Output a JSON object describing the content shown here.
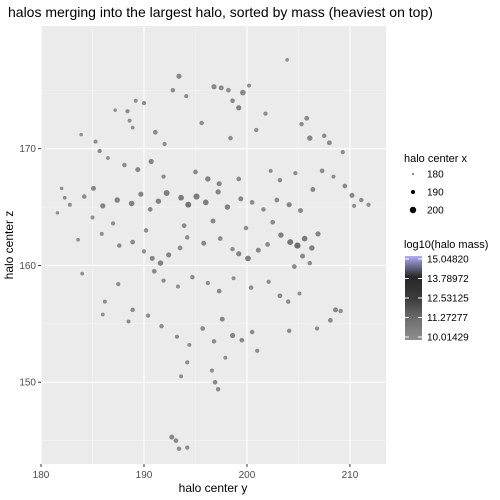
{
  "chart_data": {
    "type": "scatter",
    "title": "halos merging into the largest halo, sorted by mass (heaviest on top)",
    "xlabel": "halo center y",
    "ylabel": "halo center z",
    "xlim": [
      180,
      213.5
    ],
    "ylim": [
      143,
      180.5
    ],
    "xticks": [
      180,
      190,
      200,
      210
    ],
    "yticks": [
      150,
      160,
      170
    ],
    "grid": true,
    "size_legend": {
      "title": "halo center x",
      "labels": [
        "180",
        "190",
        "200"
      ],
      "values": [
        180,
        190,
        200
      ]
    },
    "color_legend": {
      "title": "log10(halo mass)",
      "labels": [
        "15.04820",
        "13.78972",
        "12.53125",
        "11.27277",
        "10.01429"
      ],
      "min": 10.01429,
      "max": 15.0482,
      "colors": [
        "#8f8f8f",
        "#6e6e6e",
        "#3b3b3b",
        "#262626",
        "#aeaef5"
      ]
    },
    "points": [
      [
        193.4,
        176.2,
        195,
        10.5
      ],
      [
        192.8,
        175.0,
        192,
        10.3
      ],
      [
        194.1,
        174.5,
        190,
        10.4
      ],
      [
        187.2,
        173.3,
        188,
        10.2
      ],
      [
        190.0,
        173.9,
        191,
        10.3
      ],
      [
        196.8,
        175.3,
        195,
        10.4
      ],
      [
        197.5,
        175.2,
        194,
        10.3
      ],
      [
        198.2,
        175.0,
        193,
        10.2
      ],
      [
        199.6,
        174.8,
        197,
        10.4
      ],
      [
        200.2,
        175.4,
        190,
        10.2
      ],
      [
        198.6,
        174.1,
        192,
        10.6
      ],
      [
        199.2,
        173.5,
        195,
        10.7
      ],
      [
        201.8,
        173.0,
        191,
        10.3
      ],
      [
        203.9,
        177.6,
        189,
        10.2
      ],
      [
        205.3,
        172.1,
        192,
        10.3
      ],
      [
        205.8,
        172.6,
        193,
        10.4
      ],
      [
        206.1,
        170.9,
        196,
        10.5
      ],
      [
        207.5,
        171.1,
        192,
        10.3
      ],
      [
        208.0,
        170.5,
        194,
        10.4
      ],
      [
        209.3,
        169.7,
        191,
        10.3
      ],
      [
        188.6,
        172.4,
        190,
        10.3
      ],
      [
        188.9,
        171.8,
        189,
        10.2
      ],
      [
        191.1,
        171.4,
        193,
        10.4
      ],
      [
        192.0,
        170.4,
        191,
        10.3
      ],
      [
        183.9,
        171.2,
        188,
        10.2
      ],
      [
        185.3,
        170.6,
        190,
        10.3
      ],
      [
        185.7,
        169.8,
        191,
        10.4
      ],
      [
        186.5,
        169.2,
        189,
        10.3
      ],
      [
        188.1,
        168.6,
        192,
        10.3
      ],
      [
        189.4,
        168.2,
        194,
        10.5
      ],
      [
        190.7,
        168.9,
        195,
        10.6
      ],
      [
        191.9,
        167.6,
        191,
        10.3
      ],
      [
        195.0,
        168.0,
        193,
        10.4
      ],
      [
        196.2,
        167.4,
        196,
        10.7
      ],
      [
        197.3,
        167.0,
        195,
        10.5
      ],
      [
        199.2,
        167.4,
        193,
        10.4
      ],
      [
        202.3,
        168.1,
        190,
        10.3
      ],
      [
        203.2,
        167.3,
        192,
        10.4
      ],
      [
        204.7,
        167.9,
        191,
        10.3
      ],
      [
        206.4,
        166.5,
        194,
        10.4
      ],
      [
        207.3,
        168.1,
        193,
        10.3
      ],
      [
        208.4,
        167.6,
        190,
        10.2
      ],
      [
        182.0,
        166.6,
        188,
        10.2
      ],
      [
        182.3,
        165.8,
        189,
        10.3
      ],
      [
        182.8,
        165.2,
        190,
        10.3
      ],
      [
        184.2,
        165.9,
        192,
        10.4
      ],
      [
        185.1,
        166.6,
        194,
        10.5
      ],
      [
        186.0,
        165.1,
        195,
        10.6
      ],
      [
        187.4,
        165.6,
        196,
        10.7
      ],
      [
        188.8,
        165.3,
        197,
        10.8
      ],
      [
        189.7,
        166.1,
        195,
        10.6
      ],
      [
        190.6,
        164.8,
        193,
        10.5
      ],
      [
        191.4,
        165.5,
        196,
        10.7
      ],
      [
        192.2,
        166.2,
        198,
        10.9
      ],
      [
        193.6,
        165.8,
        197,
        11.0
      ],
      [
        194.3,
        165.2,
        198,
        11.3
      ],
      [
        195.1,
        165.9,
        199,
        11.0
      ],
      [
        196.0,
        165.4,
        197,
        10.8
      ],
      [
        197.2,
        166.3,
        195,
        10.6
      ],
      [
        198.1,
        165.0,
        196,
        10.8
      ],
      [
        199.4,
        165.7,
        194,
        10.5
      ],
      [
        200.5,
        165.4,
        193,
        10.4
      ],
      [
        201.6,
        164.8,
        192,
        10.3
      ],
      [
        202.9,
        165.6,
        193,
        10.4
      ],
      [
        204.1,
        165.2,
        195,
        10.6
      ],
      [
        205.2,
        164.7,
        194,
        10.5
      ],
      [
        183.6,
        162.2,
        189,
        10.2
      ],
      [
        185.9,
        162.7,
        190,
        10.3
      ],
      [
        187.6,
        161.7,
        192,
        10.4
      ],
      [
        188.9,
        162.0,
        193,
        10.4
      ],
      [
        190.0,
        161.2,
        191,
        10.3
      ],
      [
        190.8,
        160.6,
        194,
        10.6
      ],
      [
        191.6,
        160.2,
        196,
        10.8
      ],
      [
        192.4,
        160.9,
        195,
        10.6
      ],
      [
        193.5,
        161.5,
        193,
        10.4
      ],
      [
        194.2,
        162.4,
        192,
        10.3
      ],
      [
        195.8,
        161.9,
        194,
        10.5
      ],
      [
        197.4,
        162.3,
        193,
        10.4
      ],
      [
        198.6,
        161.4,
        192,
        10.3
      ],
      [
        199.2,
        161.0,
        195,
        10.6
      ],
      [
        200.1,
        160.6,
        197,
        10.9
      ],
      [
        201.1,
        161.3,
        194,
        10.5
      ],
      [
        202.0,
        161.8,
        193,
        10.4
      ],
      [
        203.3,
        162.6,
        196,
        10.8
      ],
      [
        204.2,
        162.0,
        198,
        11.2
      ],
      [
        204.9,
        161.7,
        199,
        11.5
      ],
      [
        205.6,
        162.3,
        197,
        11.0
      ],
      [
        206.3,
        161.5,
        196,
        10.8
      ],
      [
        206.9,
        162.7,
        195,
        10.6
      ],
      [
        205.4,
        160.8,
        194,
        10.5
      ],
      [
        204.6,
        159.9,
        193,
        10.4
      ],
      [
        206.1,
        160.2,
        192,
        10.3
      ],
      [
        191.0,
        159.5,
        193,
        10.4
      ],
      [
        191.9,
        158.7,
        191,
        10.3
      ],
      [
        193.3,
        158.2,
        190,
        10.2
      ],
      [
        194.7,
        159.0,
        192,
        10.3
      ],
      [
        196.2,
        158.5,
        191,
        10.3
      ],
      [
        197.3,
        157.8,
        193,
        10.4
      ],
      [
        198.7,
        158.9,
        190,
        10.2
      ],
      [
        200.4,
        158.1,
        192,
        10.3
      ],
      [
        202.1,
        158.6,
        191,
        10.3
      ],
      [
        203.2,
        157.4,
        193,
        10.4
      ],
      [
        204.0,
        156.9,
        192,
        10.3
      ],
      [
        205.1,
        157.6,
        190,
        10.2
      ],
      [
        184.0,
        159.3,
        189,
        10.2
      ],
      [
        186.2,
        156.9,
        190,
        10.3
      ],
      [
        187.5,
        158.4,
        191,
        10.3
      ],
      [
        188.9,
        156.2,
        192,
        10.4
      ],
      [
        190.4,
        155.7,
        191,
        10.3
      ],
      [
        191.7,
        154.8,
        192,
        10.3
      ],
      [
        193.2,
        153.9,
        191,
        10.3
      ],
      [
        194.4,
        153.2,
        190,
        10.2
      ],
      [
        195.7,
        154.6,
        193,
        10.4
      ],
      [
        196.8,
        153.5,
        192,
        10.3
      ],
      [
        197.6,
        155.4,
        194,
        10.5
      ],
      [
        198.6,
        154.0,
        195,
        10.6
      ],
      [
        199.5,
        153.6,
        193,
        10.4
      ],
      [
        200.5,
        154.3,
        192,
        10.3
      ],
      [
        201.0,
        152.7,
        191,
        10.3
      ],
      [
        197.9,
        152.1,
        190,
        10.2
      ],
      [
        196.6,
        151.0,
        191,
        10.3
      ],
      [
        196.9,
        150.0,
        193,
        10.4
      ],
      [
        197.2,
        149.4,
        192,
        10.3
      ],
      [
        194.2,
        151.7,
        191,
        10.3
      ],
      [
        193.6,
        150.5,
        190,
        10.2
      ],
      [
        204.1,
        154.4,
        192,
        10.3
      ],
      [
        206.8,
        154.6,
        191,
        10.3
      ],
      [
        208.1,
        155.3,
        193,
        10.4
      ],
      [
        208.6,
        156.2,
        194,
        10.5
      ],
      [
        209.1,
        156.1,
        192,
        10.3
      ],
      [
        192.7,
        145.3,
        194,
        10.5
      ],
      [
        193.1,
        145.0,
        193,
        10.4
      ],
      [
        193.4,
        144.3,
        192,
        10.3
      ],
      [
        194.2,
        144.4,
        191,
        10.3
      ],
      [
        186.0,
        155.8,
        189,
        10.2
      ],
      [
        188.5,
        155.2,
        190,
        10.3
      ],
      [
        209.5,
        166.8,
        193,
        10.4
      ],
      [
        210.2,
        166.0,
        194,
        10.5
      ],
      [
        211.1,
        165.6,
        192,
        10.3
      ],
      [
        211.8,
        165.2,
        191,
        10.3
      ],
      [
        210.4,
        165.1,
        190,
        10.2
      ],
      [
        202.5,
        163.7,
        193,
        10.4
      ],
      [
        199.9,
        163.2,
        192,
        10.3
      ],
      [
        196.7,
        163.8,
        194,
        10.5
      ],
      [
        193.9,
        163.4,
        193,
        10.4
      ],
      [
        190.2,
        163.0,
        192,
        10.3
      ],
      [
        187.0,
        163.6,
        191,
        10.3
      ],
      [
        185.0,
        164.1,
        190,
        10.2
      ],
      [
        181.6,
        164.5,
        188,
        10.2
      ],
      [
        198.4,
        170.9,
        192,
        10.3
      ],
      [
        200.9,
        171.6,
        191,
        10.3
      ],
      [
        195.6,
        172.2,
        192,
        10.3
      ],
      [
        189.2,
        174.1,
        190,
        10.2
      ],
      [
        188.4,
        173.2,
        191,
        10.3
      ]
    ]
  }
}
